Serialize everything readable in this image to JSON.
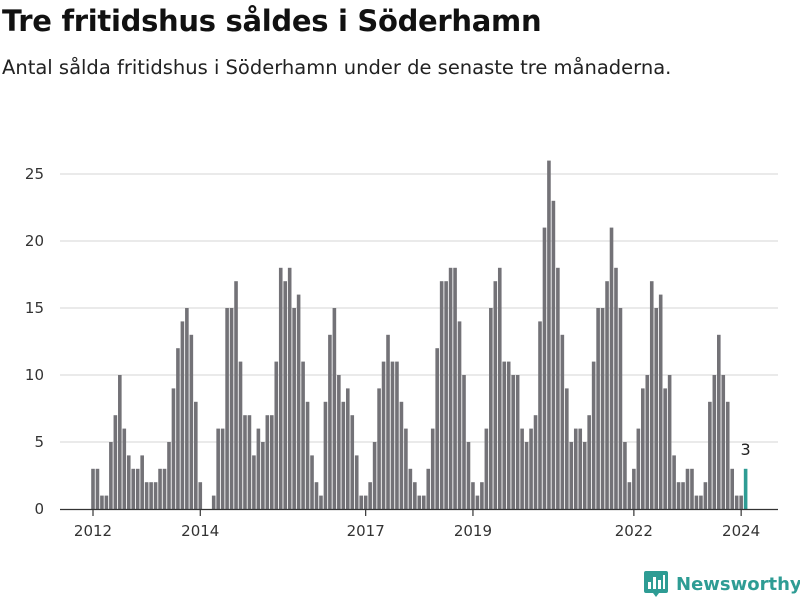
{
  "chart_data": {
    "type": "bar",
    "title": "Tre fritidshus såldes i Söderhamn",
    "subtitle": "Antal sålda fritidshus i Söderhamn under de senaste tre månaderna.",
    "xlabel": "",
    "ylabel": "",
    "ylim": [
      0,
      27
    ],
    "yticks": [
      0,
      5,
      10,
      15,
      20,
      25
    ],
    "xticks": [
      {
        "label": "2012",
        "index": 0
      },
      {
        "label": "2014",
        "index": 24
      },
      {
        "label": "2017",
        "index": 61
      },
      {
        "label": "2019",
        "index": 85
      },
      {
        "label": "2022",
        "index": 121
      },
      {
        "label": "2024",
        "index": 145
      }
    ],
    "grid": true,
    "colors": {
      "bar": "#737277",
      "highlight": "#2e9c94",
      "grid": "#dddddd",
      "axis": "#333333"
    },
    "highlight_annotation": "3",
    "series": [
      {
        "values": [
          3,
          3,
          1,
          1,
          5,
          7,
          10,
          6,
          4,
          3,
          3,
          4,
          2,
          2,
          2,
          3,
          3,
          5,
          9,
          12,
          14,
          15,
          13,
          8,
          2,
          0,
          0,
          1,
          6,
          6,
          15,
          15,
          17,
          11,
          7,
          7,
          4,
          6,
          5,
          7,
          7,
          11,
          18,
          17,
          18,
          15,
          16,
          11,
          8,
          4,
          2,
          1,
          8,
          13,
          15,
          10,
          8,
          9,
          7,
          4,
          1,
          1,
          2,
          5,
          9,
          11,
          13,
          11,
          11,
          8,
          6,
          3,
          2,
          1,
          1,
          3,
          6,
          12,
          17,
          17,
          18,
          18,
          14,
          10,
          5,
          2,
          1,
          2,
          6,
          15,
          17,
          18,
          11,
          11,
          10,
          10,
          6,
          5,
          6,
          7,
          14,
          21,
          26,
          23,
          18,
          13,
          9,
          5,
          6,
          6,
          5,
          7,
          11,
          15,
          15,
          17,
          21,
          18,
          15,
          5,
          2,
          3,
          6,
          9,
          10,
          17,
          15,
          16,
          9,
          10,
          4,
          2,
          2,
          3,
          3,
          1,
          1,
          2,
          8,
          10,
          13,
          10,
          8,
          3,
          1,
          1,
          3
        ]
      }
    ]
  },
  "brand": {
    "name": "Newsworthy",
    "icon": "bar-chart-pin-icon"
  }
}
